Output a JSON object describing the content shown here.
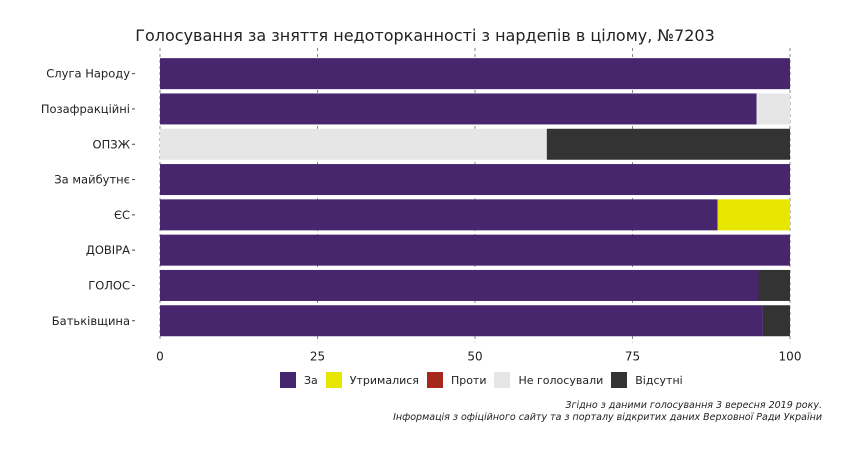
{
  "chart_data": {
    "type": "bar",
    "orientation": "horizontal",
    "stacked": true,
    "title": "Голосування за зняття недоторканності з нардепів в цілому, №7203",
    "categories": [
      "Слуга Народу",
      "Позафракційні",
      "ОПЗЖ",
      "За майбутнє",
      "ЄС",
      "ДОВІРА",
      "ГОЛОС",
      "Батьківщина"
    ],
    "series": [
      {
        "name": "За",
        "color": "#47266e",
        "values": [
          100,
          94.7,
          0,
          100,
          88.5,
          100,
          95,
          95.7
        ]
      },
      {
        "name": "Утрималися",
        "color": "#e6e600",
        "values": [
          0,
          0,
          0,
          0,
          11.5,
          0,
          0,
          0
        ]
      },
      {
        "name": "Проти",
        "color": "#a5291b",
        "values": [
          0,
          0,
          0,
          0,
          0,
          0,
          0,
          0
        ]
      },
      {
        "name": "Не голосували",
        "color": "#e6e6e6",
        "values": [
          0,
          5.3,
          61.4,
          0,
          0,
          0,
          0,
          0
        ]
      },
      {
        "name": "Відсутні",
        "color": "#333333",
        "values": [
          0,
          0,
          38.6,
          0,
          0,
          0,
          5,
          4.3
        ]
      }
    ],
    "xlim": [
      0,
      100
    ],
    "xticks": [
      "0",
      "25",
      "50",
      "75",
      "100"
    ],
    "legend_position": "bottom",
    "grid": true
  },
  "caption": {
    "line1": "Згідно з даними голосування 3 вересня 2019 року.",
    "line2": "Інформація з офіційного сайту та з порталу відкритих даних Верховної Ради України"
  }
}
